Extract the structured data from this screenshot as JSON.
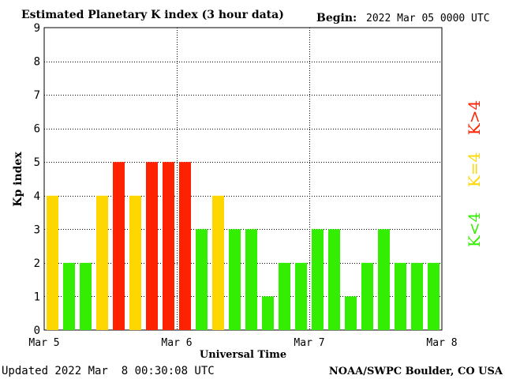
{
  "chart_data": {
    "type": "bar",
    "title": "Estimated Planetary K index (3 hour data)",
    "begin_label": "Begin:",
    "begin_value": "2022 Mar 05 0000 UTC",
    "ylabel": "Kp index",
    "xlabel": "Universal Time",
    "ylim": [
      0,
      9
    ],
    "yticks": [
      "0",
      "1",
      "2",
      "3",
      "4",
      "5",
      "6",
      "7",
      "8",
      "9"
    ],
    "xticks": [
      "Mar 5",
      "Mar 6",
      "Mar 7",
      "Mar 8"
    ],
    "values": [
      4,
      2,
      2,
      4,
      5,
      4,
      5,
      5,
      5,
      3,
      4,
      3,
      3,
      1,
      2,
      2,
      3,
      3,
      1,
      2,
      3,
      2,
      2,
      2
    ],
    "grid": true,
    "legend": [
      {
        "label": "K<4",
        "color": "#33ee00"
      },
      {
        "label": "K=4",
        "color": "#ffd700"
      },
      {
        "label": "K>4",
        "color": "#ff2200"
      }
    ]
  },
  "footer": {
    "updated": "Updated 2022 Mar  8 00:30:08 UTC",
    "source": "NOAA/SWPC Boulder, CO USA"
  }
}
